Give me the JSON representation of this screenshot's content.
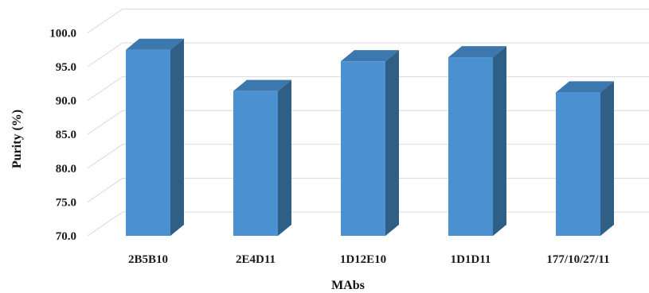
{
  "chart_data": {
    "type": "bar",
    "style": "3d-column",
    "title": "",
    "xlabel": "MAbs",
    "ylabel": "Purity (%)",
    "categories": [
      "2B5B10",
      "2E4D11",
      "1D12E10",
      "1D1D11",
      "177/10/27/11"
    ],
    "values": [
      97.5,
      91.4,
      95.8,
      96.4,
      91.2
    ],
    "ylim": [
      70.0,
      100.0
    ],
    "yticks": [
      "70.0",
      "75.0",
      "80.0",
      "85.0",
      "90.0",
      "95.0",
      "100.0"
    ],
    "grid": true,
    "legend": "none",
    "colors": {
      "bar_front": "#4b90d0",
      "bar_side": "#2f5f84",
      "bar_top": "#3c78ad",
      "grid": "#d9d9d9"
    }
  }
}
